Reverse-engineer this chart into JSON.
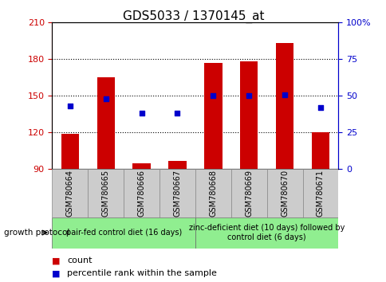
{
  "title": "GDS5033 / 1370145_at",
  "samples": [
    "GSM780664",
    "GSM780665",
    "GSM780666",
    "GSM780667",
    "GSM780668",
    "GSM780669",
    "GSM780670",
    "GSM780671"
  ],
  "count_values": [
    119,
    165,
    95,
    97,
    177,
    178,
    193,
    120
  ],
  "percentile_values": [
    43,
    48,
    38,
    38,
    50,
    50,
    51,
    42
  ],
  "ylim_left": [
    90,
    210
  ],
  "ylim_right": [
    0,
    100
  ],
  "yticks_left": [
    90,
    120,
    150,
    180,
    210
  ],
  "yticks_right": [
    0,
    25,
    50,
    75,
    100
  ],
  "ytick_labels_right": [
    "0",
    "25",
    "50",
    "75",
    "100%"
  ],
  "bar_color": "#cc0000",
  "dot_color": "#0000cc",
  "bar_bottom": 90,
  "protocol_groups": [
    {
      "label": "pair-fed control diet (16 days)",
      "start": 0,
      "end": 4
    },
    {
      "label": "zinc-deficient diet (10 days) followed by\ncontrol diet (6 days)",
      "start": 4,
      "end": 8
    }
  ],
  "group_label": "growth protocol",
  "legend_count": "count",
  "legend_pct": "percentile rank within the sample",
  "axis_color_left": "#cc0000",
  "axis_color_right": "#0000cc",
  "sample_box_color": "#cccccc",
  "proto_box_color": "#90ee90",
  "title_fontsize": 11,
  "tick_fontsize": 8,
  "sample_fontsize": 7,
  "proto_fontsize": 7,
  "legend_fontsize": 8
}
